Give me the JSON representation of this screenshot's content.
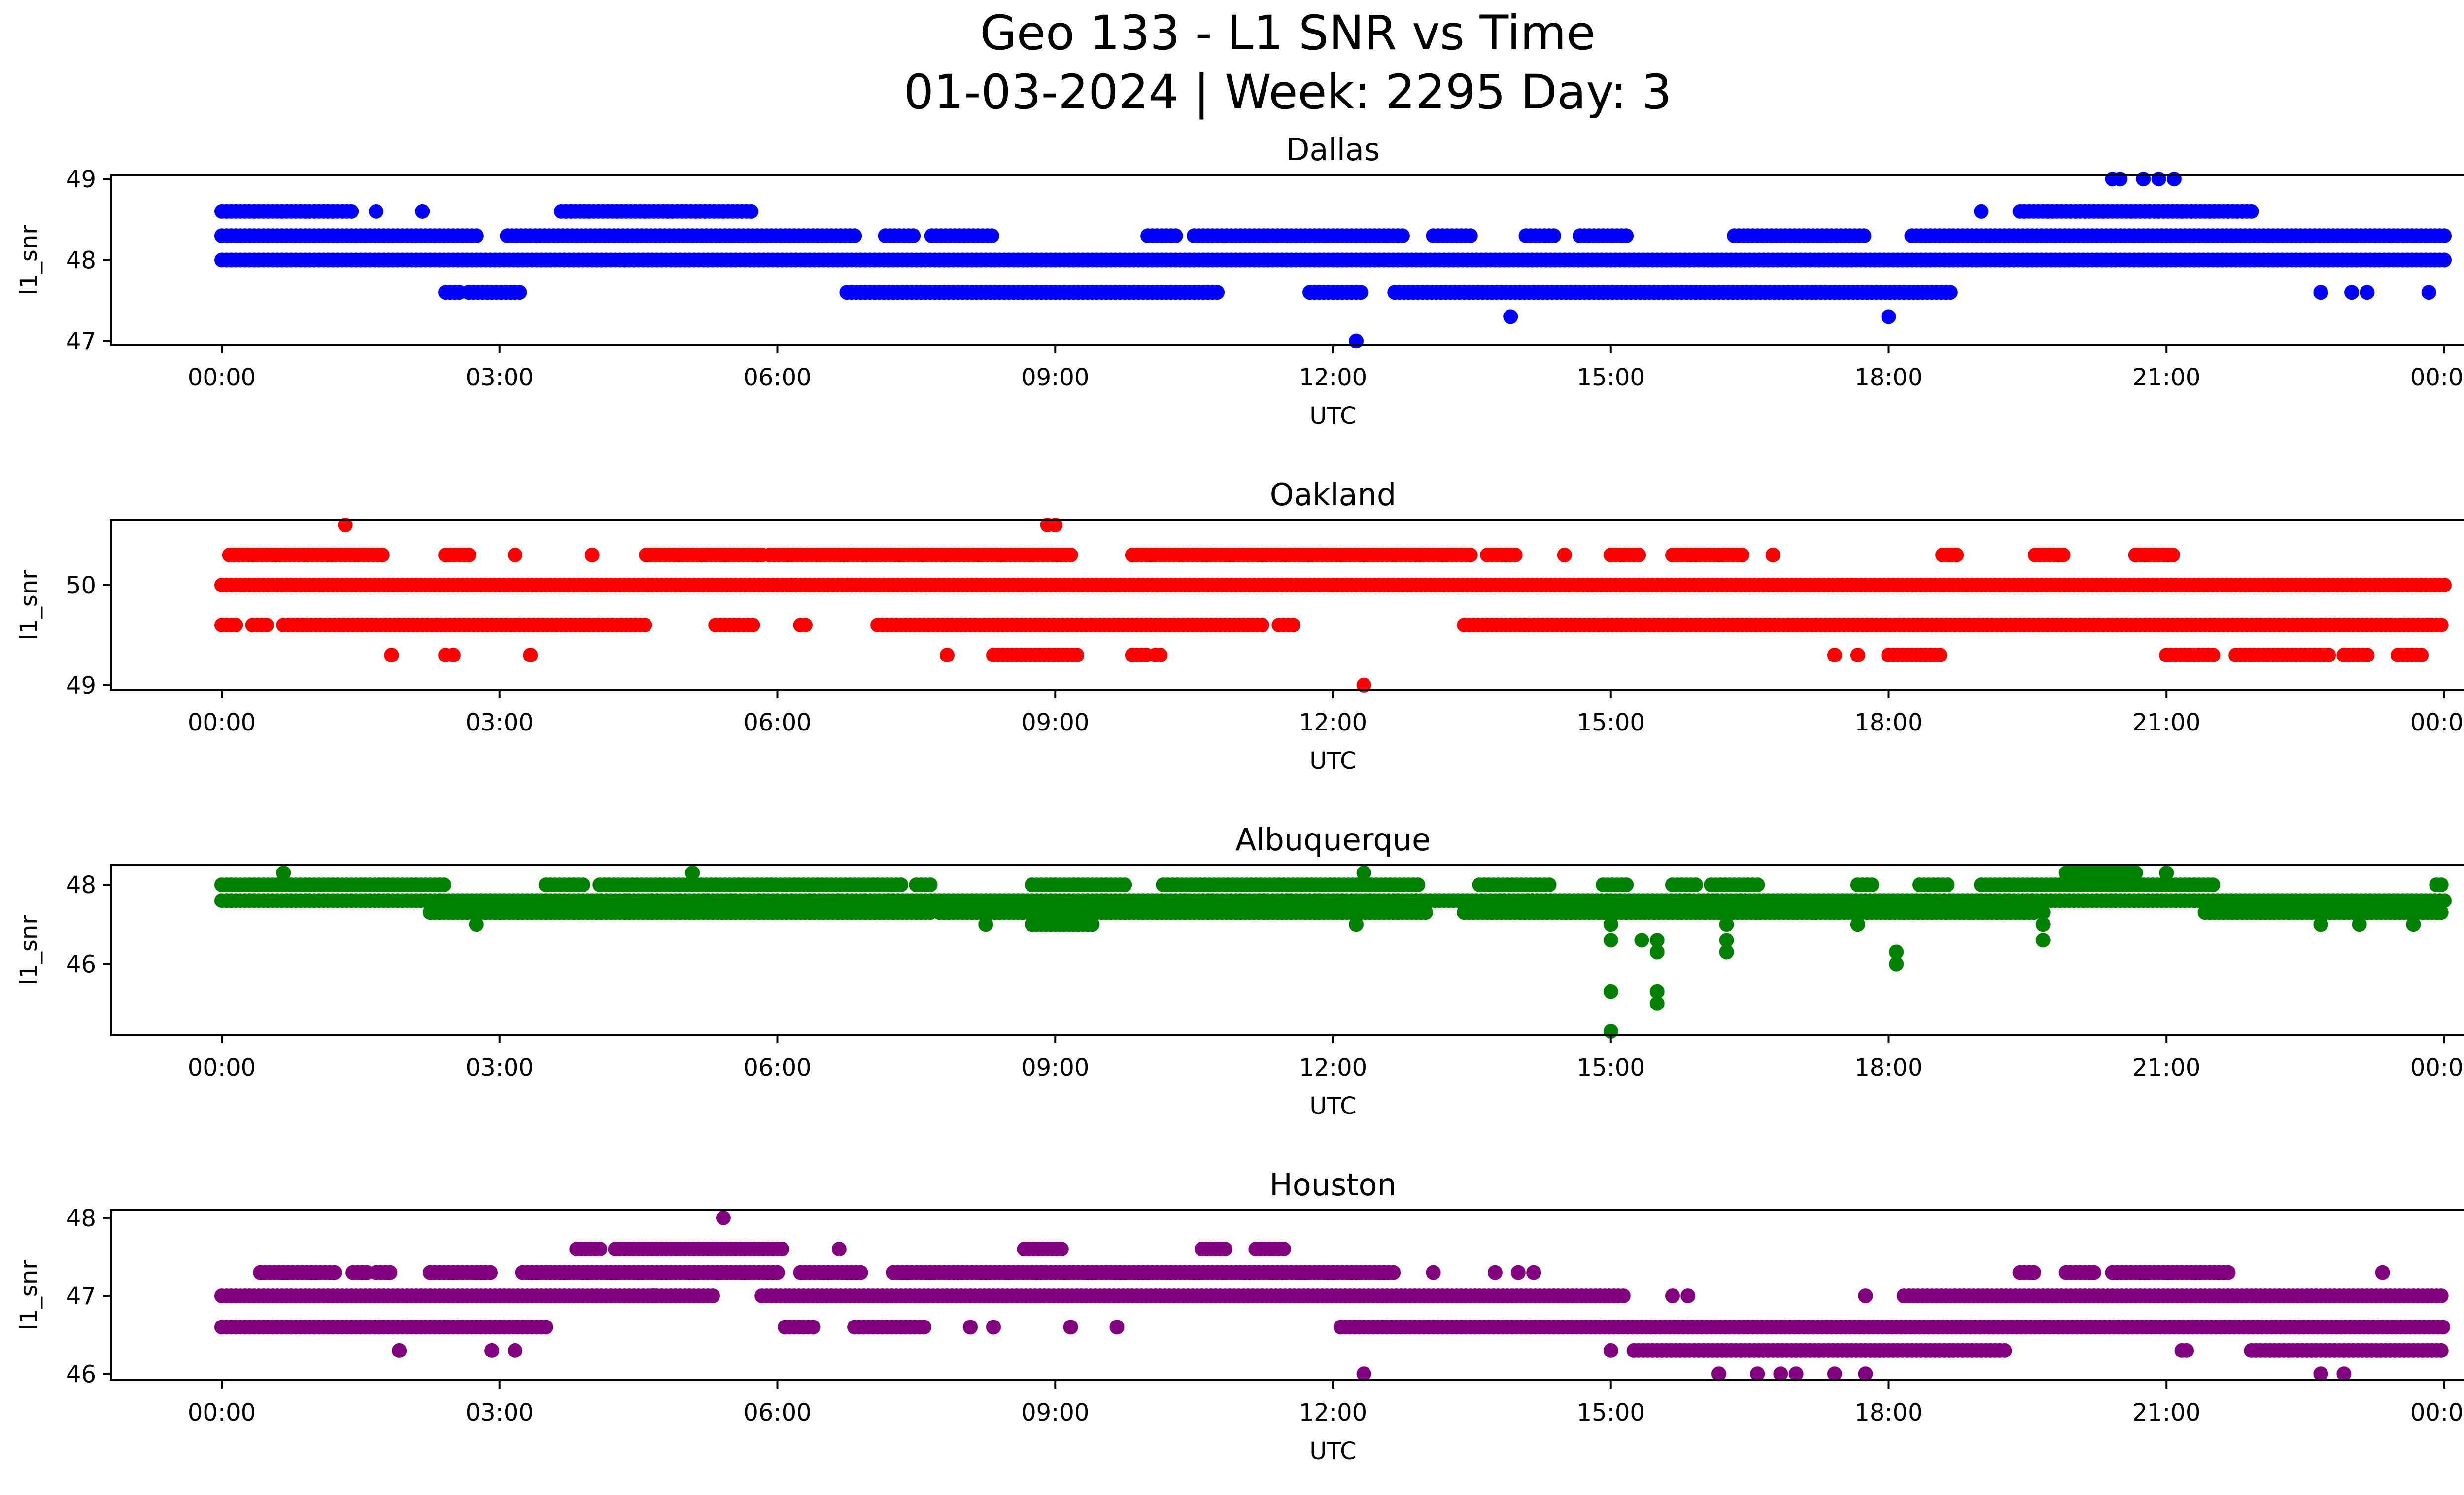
{
  "figure": {
    "title_line1": "Geo 133 - L1 SNR vs Time",
    "title_line2": "01-03-2024 | Week: 2295 Day: 3"
  },
  "chart_data": [
    {
      "type": "scatter",
      "title": "Dallas",
      "xlabel": "UTC",
      "ylabel": "l1_snr",
      "color": "#0000ff",
      "xlim": [
        "00:00",
        "00:00"
      ],
      "ylim": [
        46.95,
        49.05
      ],
      "xticks": [
        "00:00",
        "03:00",
        "06:00",
        "09:00",
        "12:00",
        "15:00",
        "18:00",
        "21:00",
        "00:00"
      ],
      "yticks": [
        "47",
        "48",
        "49"
      ],
      "levels": [
        {
          "y": 48.0,
          "ranges": [
            [
              "00:00",
              "24:00"
            ]
          ]
        },
        {
          "y": 48.3,
          "ranges": [
            [
              "00:00",
              "02:45"
            ],
            [
              "03:05",
              "06:50"
            ],
            [
              "07:10",
              "07:30"
            ],
            [
              "07:40",
              "08:20"
            ],
            [
              "10:00",
              "10:20"
            ],
            [
              "10:30",
              "12:45"
            ],
            [
              "13:05",
              "13:30"
            ],
            [
              "14:05",
              "14:25"
            ],
            [
              "14:40",
              "15:10"
            ],
            [
              "16:20",
              "17:45"
            ],
            [
              "18:15",
              "24:00"
            ]
          ]
        },
        {
          "y": 48.6,
          "ranges": [
            [
              "00:00",
              "01:25"
            ],
            [
              "03:40",
              "05:45"
            ],
            [
              "19:25",
              "21:55"
            ]
          ]
        },
        {
          "y": 47.6,
          "ranges": [
            [
              "02:25",
              "02:35"
            ],
            [
              "02:40",
              "03:15"
            ],
            [
              "06:45",
              "10:45"
            ],
            [
              "11:45",
              "12:20"
            ],
            [
              "12:40",
              "18:40"
            ]
          ]
        }
      ],
      "points": [
        {
          "x": "12:15",
          "y": 47.0
        },
        {
          "x": "13:55",
          "y": 47.3
        },
        {
          "x": "18:00",
          "y": 47.3
        },
        {
          "x": "20:25",
          "y": 49.0
        },
        {
          "x": "20:30",
          "y": 49.0
        },
        {
          "x": "20:45",
          "y": 49.0
        },
        {
          "x": "20:55",
          "y": 49.0
        },
        {
          "x": "21:05",
          "y": 49.0
        },
        {
          "x": "19:00",
          "y": 48.6
        },
        {
          "x": "02:10",
          "y": 48.6
        },
        {
          "x": "01:40",
          "y": 48.6
        },
        {
          "x": "22:40",
          "y": 47.6
        },
        {
          "x": "23:00",
          "y": 47.6
        },
        {
          "x": "23:10",
          "y": 47.6
        },
        {
          "x": "23:50",
          "y": 47.6
        }
      ]
    },
    {
      "type": "scatter",
      "title": "Oakland",
      "xlabel": "UTC",
      "ylabel": "l1_snr",
      "color": "#ff0000",
      "xlim": [
        "00:00",
        "00:00"
      ],
      "ylim": [
        48.95,
        50.65
      ],
      "xticks": [
        "00:00",
        "03:00",
        "06:00",
        "09:00",
        "12:00",
        "15:00",
        "18:00",
        "21:00",
        "00:00"
      ],
      "yticks": [
        "49",
        "50"
      ],
      "levels": [
        {
          "y": 50.0,
          "ranges": [
            [
              "00:00",
              "24:00"
            ]
          ]
        },
        {
          "y": 50.3,
          "ranges": [
            [
              "00:05",
              "01:45"
            ],
            [
              "02:25",
              "02:40"
            ],
            [
              "04:35",
              "05:50"
            ],
            [
              "05:55",
              "09:10"
            ],
            [
              "09:50",
              "13:30"
            ],
            [
              "13:40",
              "14:00"
            ],
            [
              "15:00",
              "15:20"
            ],
            [
              "15:40",
              "16:25"
            ],
            [
              "18:35",
              "18:45"
            ],
            [
              "19:35",
              "19:55"
            ],
            [
              "20:40",
              "21:05"
            ]
          ]
        },
        {
          "y": 49.6,
          "ranges": [
            [
              "00:00",
              "00:10"
            ],
            [
              "00:20",
              "00:30"
            ],
            [
              "00:40",
              "04:35"
            ],
            [
              "05:20",
              "05:45"
            ],
            [
              "06:15",
              "06:20"
            ],
            [
              "07:05",
              "11:15"
            ],
            [
              "11:25",
              "11:35"
            ],
            [
              "13:25",
              "24:00"
            ]
          ]
        },
        {
          "y": 49.3,
          "ranges": [
            [
              "08:20",
              "09:15"
            ],
            [
              "09:50",
              "10:00"
            ],
            [
              "10:05",
              "10:10"
            ],
            [
              "18:00",
              "18:35"
            ],
            [
              "21:00",
              "21:30"
            ],
            [
              "21:45",
              "22:45"
            ],
            [
              "22:55",
              "23:10"
            ],
            [
              "23:30",
              "23:45"
            ]
          ]
        }
      ],
      "points": [
        {
          "x": "01:20",
          "y": 50.6
        },
        {
          "x": "08:55",
          "y": 50.6
        },
        {
          "x": "09:00",
          "y": 50.6
        },
        {
          "x": "12:20",
          "y": 49.0
        },
        {
          "x": "01:50",
          "y": 49.3
        },
        {
          "x": "02:25",
          "y": 49.3
        },
        {
          "x": "02:30",
          "y": 49.3
        },
        {
          "x": "03:20",
          "y": 49.3
        },
        {
          "x": "07:50",
          "y": 49.3
        },
        {
          "x": "17:25",
          "y": 49.3
        },
        {
          "x": "17:40",
          "y": 49.3
        },
        {
          "x": "03:10",
          "y": 50.3
        },
        {
          "x": "04:00",
          "y": 50.3
        },
        {
          "x": "14:30",
          "y": 50.3
        },
        {
          "x": "16:45",
          "y": 50.3
        }
      ]
    },
    {
      "type": "scatter",
      "title": "Albuquerque",
      "xlabel": "UTC",
      "ylabel": "l1_snr",
      "color": "#008000",
      "xlim": [
        "00:00",
        "00:00"
      ],
      "ylim": [
        44.2,
        48.5
      ],
      "xticks": [
        "00:00",
        "03:00",
        "06:00",
        "09:00",
        "12:00",
        "15:00",
        "18:00",
        "21:00",
        "00:00"
      ],
      "yticks": [
        "46",
        "48"
      ],
      "levels": [
        {
          "y": 47.6,
          "ranges": [
            [
              "00:00",
              "24:00"
            ]
          ]
        },
        {
          "y": 48.0,
          "ranges": [
            [
              "00:00",
              "02:25"
            ],
            [
              "03:30",
              "03:55"
            ],
            [
              "04:05",
              "07:20"
            ],
            [
              "07:30",
              "07:40"
            ],
            [
              "08:45",
              "09:45"
            ],
            [
              "10:10",
              "12:55"
            ],
            [
              "13:35",
              "14:20"
            ],
            [
              "14:55",
              "15:10"
            ],
            [
              "15:40",
              "15:55"
            ],
            [
              "16:05",
              "16:35"
            ],
            [
              "17:40",
              "17:50"
            ],
            [
              "18:20",
              "18:40"
            ],
            [
              "19:00",
              "21:30"
            ],
            [
              "23:55",
              "24:00"
            ]
          ]
        },
        {
          "y": 47.3,
          "ranges": [
            [
              "02:15",
              "07:40"
            ],
            [
              "07:45",
              "13:00"
            ],
            [
              "13:25",
              "19:35"
            ],
            [
              "21:25",
              "24:00"
            ]
          ]
        },
        {
          "y": 47.0,
          "ranges": [
            [
              "08:45",
              "09:25"
            ]
          ]
        },
        {
          "y": 48.3,
          "ranges": [
            [
              "19:55",
              "20:40"
            ]
          ]
        }
      ],
      "points": [
        {
          "x": "00:40",
          "y": 48.3
        },
        {
          "x": "05:05",
          "y": 48.3
        },
        {
          "x": "12:20",
          "y": 48.3
        },
        {
          "x": "21:00",
          "y": 48.3
        },
        {
          "x": "02:45",
          "y": 47.0
        },
        {
          "x": "08:15",
          "y": 47.0
        },
        {
          "x": "12:15",
          "y": 47.0
        },
        {
          "x": "17:40",
          "y": 47.0
        },
        {
          "x": "22:40",
          "y": 47.0
        },
        {
          "x": "23:05",
          "y": 47.0
        },
        {
          "x": "23:40",
          "y": 47.0
        },
        {
          "x": "15:00",
          "y": 47.0
        },
        {
          "x": "15:00",
          "y": 46.6
        },
        {
          "x": "15:00",
          "y": 45.3
        },
        {
          "x": "15:00",
          "y": 44.3
        },
        {
          "x": "15:20",
          "y": 46.6
        },
        {
          "x": "15:30",
          "y": 46.6
        },
        {
          "x": "15:30",
          "y": 46.3
        },
        {
          "x": "15:30",
          "y": 45.3
        },
        {
          "x": "15:30",
          "y": 45.0
        },
        {
          "x": "16:15",
          "y": 47.0
        },
        {
          "x": "16:15",
          "y": 46.6
        },
        {
          "x": "16:15",
          "y": 46.3
        },
        {
          "x": "18:05",
          "y": 46.3
        },
        {
          "x": "18:05",
          "y": 46.0
        },
        {
          "x": "19:40",
          "y": 47.3
        },
        {
          "x": "19:40",
          "y": 47.0
        },
        {
          "x": "19:40",
          "y": 46.6
        }
      ]
    },
    {
      "type": "scatter",
      "title": "Houston",
      "xlabel": "UTC",
      "ylabel": "l1_snr",
      "color": "#800080",
      "xlim": [
        "00:00",
        "00:00"
      ],
      "ylim": [
        45.92,
        48.1
      ],
      "xticks": [
        "00:00",
        "03:00",
        "06:00",
        "09:00",
        "12:00",
        "15:00",
        "18:00",
        "21:00",
        "00:00"
      ],
      "yticks": [
        "46",
        "47",
        "48"
      ],
      "levels": [
        {
          "y": 47.0,
          "ranges": [
            [
              "00:00",
              "05:20"
            ],
            [
              "05:50",
              "15:10"
            ],
            [
              "18:10",
              "24:00"
            ]
          ]
        },
        {
          "y": 46.6,
          "ranges": [
            [
              "00:00",
              "03:30"
            ],
            [
              "06:05",
              "06:25"
            ],
            [
              "06:50",
              "07:35"
            ],
            [
              "12:05",
              "24:00"
            ]
          ]
        },
        {
          "y": 47.3,
          "ranges": [
            [
              "00:25",
              "01:15"
            ],
            [
              "01:25",
              "01:35"
            ],
            [
              "01:40",
              "01:50"
            ],
            [
              "02:15",
              "02:55"
            ],
            [
              "03:15",
              "06:00"
            ],
            [
              "06:15",
              "06:55"
            ],
            [
              "07:15",
              "12:40"
            ],
            [
              "19:25",
              "19:35"
            ],
            [
              "19:55",
              "20:15"
            ],
            [
              "20:25",
              "21:40"
            ]
          ]
        },
        {
          "y": 47.6,
          "ranges": [
            [
              "03:50",
              "04:05"
            ],
            [
              "04:15",
              "06:05"
            ],
            [
              "08:40",
              "09:05"
            ],
            [
              "10:35",
              "10:50"
            ],
            [
              "11:10",
              "11:30"
            ]
          ]
        },
        {
          "y": 46.3,
          "ranges": [
            [
              "15:15",
              "19:15"
            ],
            [
              "21:10",
              "21:15"
            ],
            [
              "21:55",
              "24:00"
            ]
          ]
        }
      ],
      "points": [
        {
          "x": "05:25",
          "y": 48.0
        },
        {
          "x": "06:40",
          "y": 47.6
        },
        {
          "x": "01:55",
          "y": 46.3
        },
        {
          "x": "02:55",
          "y": 46.3
        },
        {
          "x": "03:10",
          "y": 46.3
        },
        {
          "x": "15:00",
          "y": 46.3
        },
        {
          "x": "12:20",
          "y": 46.0
        },
        {
          "x": "16:10",
          "y": 46.0
        },
        {
          "x": "16:35",
          "y": 46.0
        },
        {
          "x": "16:50",
          "y": 46.0
        },
        {
          "x": "17:00",
          "y": 46.0
        },
        {
          "x": "17:25",
          "y": 46.0
        },
        {
          "x": "17:45",
          "y": 46.0
        },
        {
          "x": "22:40",
          "y": 46.0
        },
        {
          "x": "22:55",
          "y": 46.0
        },
        {
          "x": "08:05",
          "y": 46.6
        },
        {
          "x": "08:20",
          "y": 46.6
        },
        {
          "x": "09:10",
          "y": 46.6
        },
        {
          "x": "09:40",
          "y": 46.6
        },
        {
          "x": "13:05",
          "y": 47.3
        },
        {
          "x": "13:45",
          "y": 47.3
        },
        {
          "x": "14:00",
          "y": 47.3
        },
        {
          "x": "14:10",
          "y": 47.3
        },
        {
          "x": "23:20",
          "y": 47.3
        },
        {
          "x": "15:40",
          "y": 47.0
        },
        {
          "x": "15:50",
          "y": 47.0
        },
        {
          "x": "17:45",
          "y": 47.0
        },
        {
          "x": "04:40",
          "y": 47.0
        }
      ]
    }
  ]
}
